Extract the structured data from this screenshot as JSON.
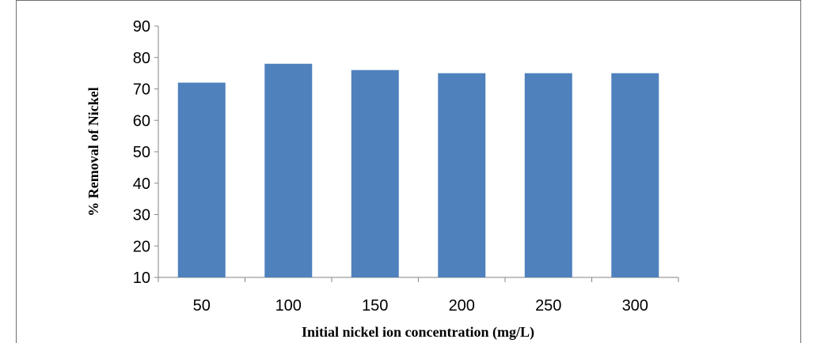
{
  "chart_data": {
    "type": "bar",
    "categories": [
      "50",
      "100",
      "150",
      "200",
      "250",
      "300"
    ],
    "values": [
      72,
      78,
      76,
      75,
      75,
      75
    ],
    "xlabel": "Initial nickel ion concentration (mg/L)",
    "ylabel": "% Removal of Nickel",
    "ylim": [
      10,
      90
    ],
    "yticks": [
      10,
      20,
      30,
      40,
      50,
      60,
      70,
      80,
      90
    ],
    "bar_color": "#4f81bd",
    "grid": false,
    "legend": "none"
  }
}
